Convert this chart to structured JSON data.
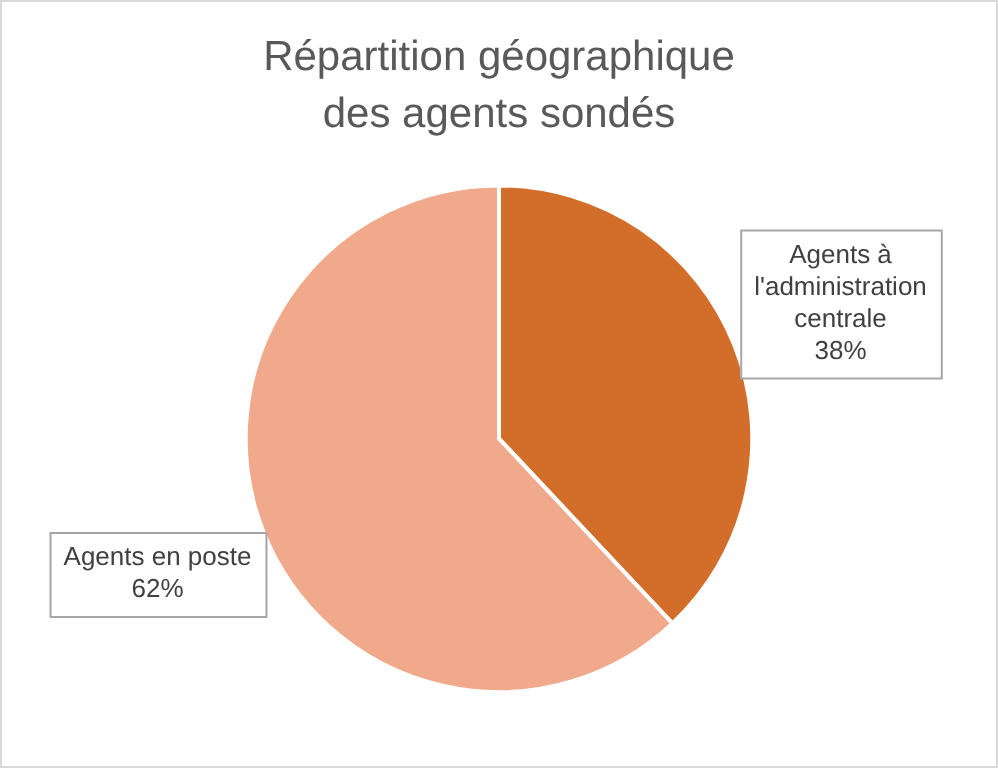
{
  "chart_data": {
    "type": "pie",
    "title": "Répartition géographique\ndes agents sondés",
    "categories": [
      "Agents à l'administration centrale",
      "Agents en poste"
    ],
    "values": [
      38,
      62
    ],
    "colors": [
      "#d26e2a",
      "#f0a98a"
    ],
    "value_labels": [
      "38%",
      "62%"
    ],
    "legend": false
  }
}
